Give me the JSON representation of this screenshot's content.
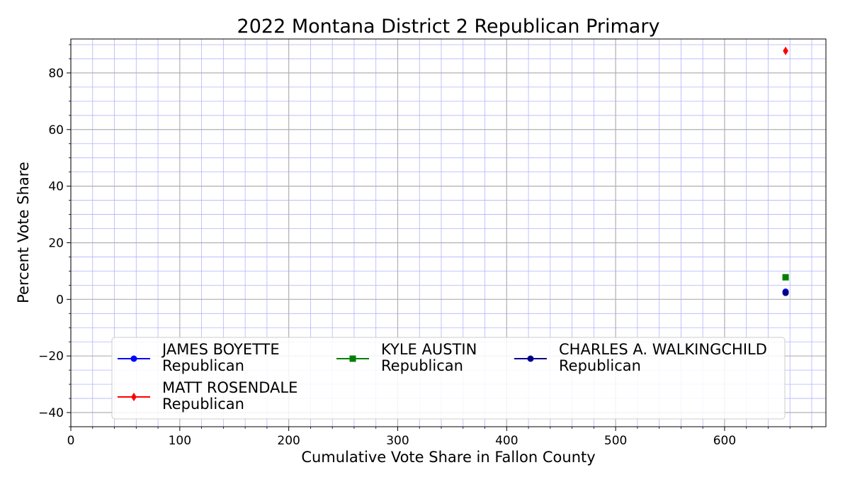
{
  "chart_data": {
    "type": "scatter",
    "title": "2022 Montana District 2 Republican Primary",
    "xlabel": "Cumulative Vote Share in Fallon County",
    "ylabel": "Percent Vote Share",
    "xlim": [
      0,
      693
    ],
    "ylim": [
      -45,
      92
    ],
    "xticks": [
      0,
      100,
      200,
      300,
      400,
      500,
      600
    ],
    "yticks": [
      -40,
      -20,
      0,
      20,
      40,
      60,
      80
    ],
    "grid": true,
    "legend_placement": "lower center",
    "series": [
      {
        "name": "JAMES BOYETTE",
        "party": "Republican",
        "color": "#0000ff",
        "marker": "circle",
        "points": [
          [
            656,
            2.7
          ]
        ]
      },
      {
        "name": "MATT ROSENDALE",
        "party": "Republican",
        "color": "#ff0000",
        "marker": "diamond",
        "points": [
          [
            656,
            87.8
          ]
        ]
      },
      {
        "name": "KYLE AUSTIN",
        "party": "Republican",
        "color": "#008000",
        "marker": "square",
        "points": [
          [
            656,
            7.8
          ]
        ]
      },
      {
        "name": "CHARLES A. WALKINGCHILD",
        "party": "Republican",
        "color": "#00008b",
        "marker": "circle",
        "points": [
          [
            656,
            2.3
          ]
        ]
      }
    ]
  }
}
